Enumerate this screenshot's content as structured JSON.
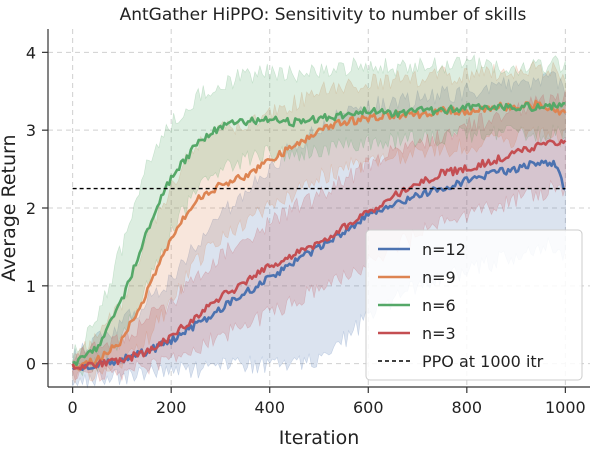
{
  "chart_data": {
    "type": "line",
    "title": "AntGather HiPPO: Sensitivity to number of skills",
    "xlabel": "Iteration",
    "ylabel": "Average Return",
    "xlim": [
      -50,
      1050
    ],
    "ylim": [
      -0.3,
      4.3
    ],
    "xticks": [
      0,
      200,
      400,
      600,
      800,
      1000
    ],
    "yticks": [
      0,
      1,
      2,
      3,
      4
    ],
    "grid": true,
    "legend_position": "lower-right",
    "series": [
      {
        "name": "n=12",
        "color": "#4c72b0",
        "x": [
          0,
          50,
          100,
          150,
          200,
          250,
          300,
          350,
          400,
          450,
          500,
          550,
          600,
          650,
          700,
          750,
          800,
          850,
          900,
          950,
          980,
          1000
        ],
        "y": [
          -0.05,
          0.0,
          0.05,
          0.15,
          0.3,
          0.5,
          0.7,
          0.9,
          1.1,
          1.3,
          1.5,
          1.7,
          1.9,
          2.05,
          2.15,
          2.25,
          2.35,
          2.45,
          2.5,
          2.6,
          2.55,
          2.22
        ],
        "lower": [
          -0.2,
          -0.2,
          -0.18,
          -0.15,
          -0.1,
          -0.08,
          -0.05,
          -0.02,
          0.0,
          0.02,
          0.05,
          0.3,
          0.6,
          0.8,
          1.0,
          1.1,
          1.2,
          1.3,
          1.4,
          1.5,
          1.5,
          1.4
        ],
        "upper": [
          0.1,
          0.3,
          0.5,
          0.8,
          1.1,
          1.5,
          1.9,
          2.2,
          2.5,
          2.8,
          3.0,
          3.2,
          3.3,
          3.35,
          3.4,
          3.45,
          3.5,
          3.55,
          3.6,
          3.65,
          3.65,
          3.5
        ]
      },
      {
        "name": "n=9",
        "color": "#dd8452",
        "x": [
          0,
          50,
          100,
          150,
          200,
          250,
          300,
          350,
          400,
          450,
          500,
          550,
          600,
          650,
          700,
          750,
          800,
          850,
          900,
          950,
          980,
          1000
        ],
        "y": [
          -0.05,
          0.05,
          0.3,
          0.9,
          1.6,
          2.1,
          2.3,
          2.4,
          2.6,
          2.8,
          3.0,
          3.1,
          3.15,
          3.2,
          3.2,
          3.25,
          3.25,
          3.3,
          3.3,
          3.35,
          3.25,
          3.25
        ],
        "lower": [
          -0.15,
          -0.1,
          0.0,
          0.3,
          0.8,
          1.3,
          1.6,
          1.8,
          2.0,
          2.2,
          2.4,
          2.5,
          2.6,
          2.65,
          2.7,
          2.75,
          2.8,
          2.85,
          2.9,
          2.95,
          2.9,
          2.9
        ],
        "upper": [
          0.1,
          0.3,
          0.8,
          1.6,
          2.3,
          2.8,
          3.0,
          3.1,
          3.2,
          3.35,
          3.5,
          3.55,
          3.6,
          3.65,
          3.65,
          3.7,
          3.7,
          3.75,
          3.75,
          3.8,
          3.75,
          3.7
        ]
      },
      {
        "name": "n=6",
        "color": "#55a868",
        "x": [
          0,
          50,
          100,
          150,
          200,
          250,
          300,
          350,
          400,
          450,
          500,
          550,
          600,
          650,
          700,
          750,
          800,
          850,
          900,
          950,
          980,
          1000
        ],
        "y": [
          0.0,
          0.2,
          0.8,
          1.7,
          2.4,
          2.8,
          3.05,
          3.1,
          3.15,
          3.1,
          3.15,
          3.2,
          3.25,
          3.2,
          3.25,
          3.25,
          3.3,
          3.3,
          3.3,
          3.3,
          3.3,
          3.35
        ],
        "lower": [
          -0.1,
          0.0,
          0.3,
          1.0,
          1.7,
          2.2,
          2.5,
          2.6,
          2.7,
          2.7,
          2.75,
          2.8,
          2.85,
          2.85,
          2.9,
          2.9,
          2.95,
          2.95,
          2.95,
          2.95,
          2.95,
          3.0
        ],
        "upper": [
          0.1,
          0.6,
          1.5,
          2.5,
          3.1,
          3.4,
          3.6,
          3.7,
          3.75,
          3.7,
          3.75,
          3.8,
          3.85,
          3.8,
          3.85,
          3.85,
          3.85,
          3.85,
          3.8,
          3.85,
          3.85,
          3.85
        ]
      },
      {
        "name": "n=3",
        "color": "#c44e52",
        "x": [
          0,
          50,
          100,
          150,
          200,
          250,
          300,
          350,
          400,
          450,
          500,
          550,
          600,
          650,
          700,
          750,
          800,
          850,
          900,
          950,
          980,
          1000
        ],
        "y": [
          -0.05,
          0.0,
          0.05,
          0.15,
          0.35,
          0.6,
          0.85,
          1.05,
          1.25,
          1.4,
          1.55,
          1.75,
          1.95,
          2.15,
          2.3,
          2.45,
          2.5,
          2.6,
          2.7,
          2.8,
          2.85,
          2.85
        ],
        "lower": [
          -0.15,
          -0.15,
          -0.1,
          -0.05,
          0.05,
          0.2,
          0.35,
          0.5,
          0.65,
          0.8,
          0.95,
          1.1,
          1.3,
          1.5,
          1.65,
          1.8,
          1.9,
          2.0,
          2.1,
          2.2,
          2.25,
          2.25
        ],
        "upper": [
          0.1,
          0.2,
          0.3,
          0.55,
          0.8,
          1.1,
          1.4,
          1.6,
          1.8,
          2.0,
          2.15,
          2.35,
          2.55,
          2.7,
          2.8,
          2.95,
          3.05,
          3.15,
          3.25,
          3.35,
          3.4,
          3.4
        ]
      }
    ],
    "reference_line": {
      "name": "PPO at 1000 itr",
      "y": 2.25,
      "x": [
        0,
        1000
      ],
      "color": "#000000",
      "style": "dashed"
    }
  }
}
